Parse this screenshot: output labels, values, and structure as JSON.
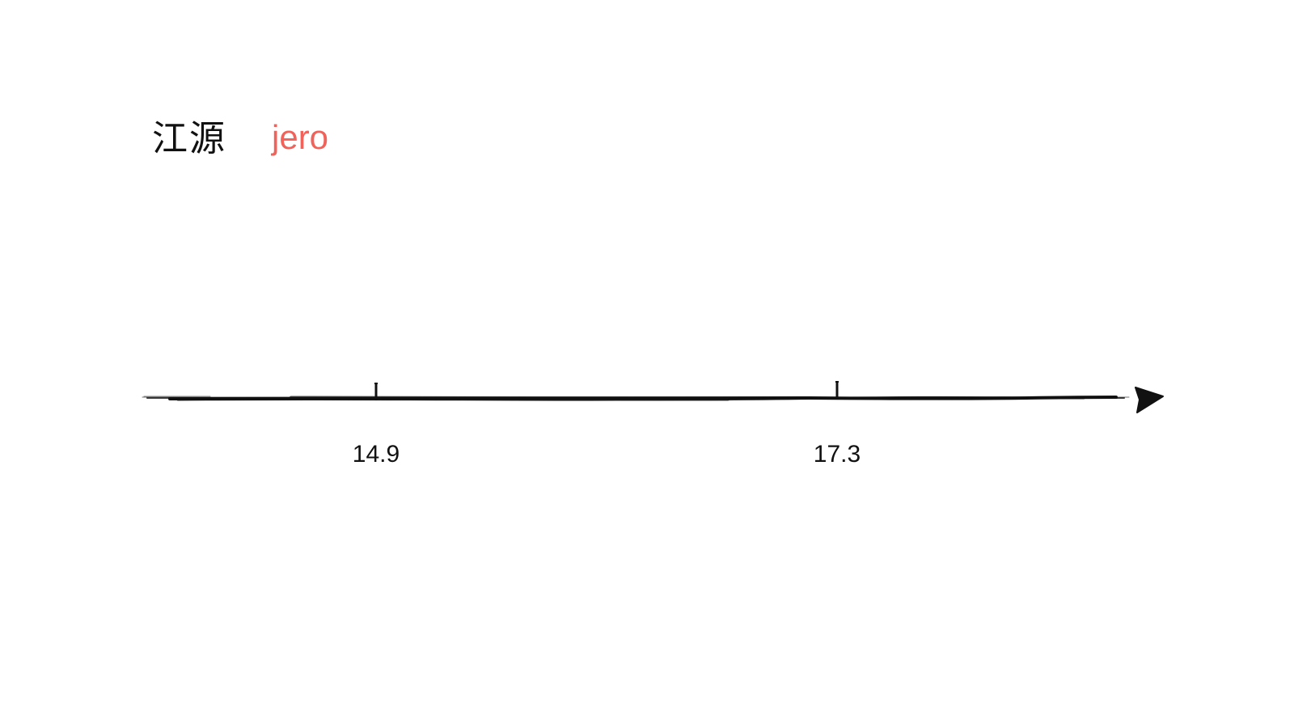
{
  "title": {
    "main": "江源",
    "sub": "jero",
    "sub_color": "#f0625a"
  },
  "timeline": {
    "line_color": "#111111",
    "markers": [
      {
        "label": "14.9"
      },
      {
        "label": "17.3"
      }
    ]
  }
}
